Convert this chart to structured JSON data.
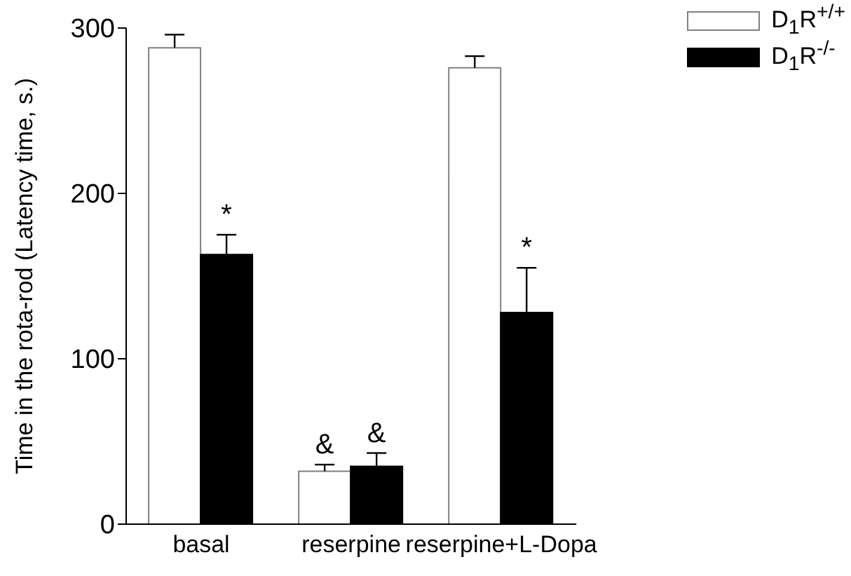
{
  "chart_data": {
    "type": "bar",
    "ylabel": "Time in the rota-rod (Latency time, s.)",
    "categories": [
      "basal",
      "reserpine",
      "reserpine+L-Dopa"
    ],
    "series": [
      {
        "name": "D$_{1}$R$^{+/+}$",
        "color": "#ffffff",
        "values": [
          288,
          32,
          276
        ],
        "errors": [
          8,
          4,
          7
        ]
      },
      {
        "name": "D$_{1}$R$^{-/-}$",
        "color": "#000000",
        "values": [
          163,
          35,
          128
        ],
        "errors": [
          12,
          8,
          27
        ]
      }
    ],
    "ylim": [
      0,
      300
    ],
    "yticks": [
      0,
      100,
      200,
      300
    ],
    "legend": "top right",
    "grid": false,
    "annotations": [
      {
        "text": "*",
        "x": "basal",
        "y": 163
      },
      {
        "text": "&",
        "x": "reserpine",
        "y": 32
      },
      {
        "text": "&",
        "x": "reserpine",
        "y": 35
      },
      {
        "text": "*",
        "x": "reserpine+L-Dopa",
        "y": 128
      }
    ]
  }
}
